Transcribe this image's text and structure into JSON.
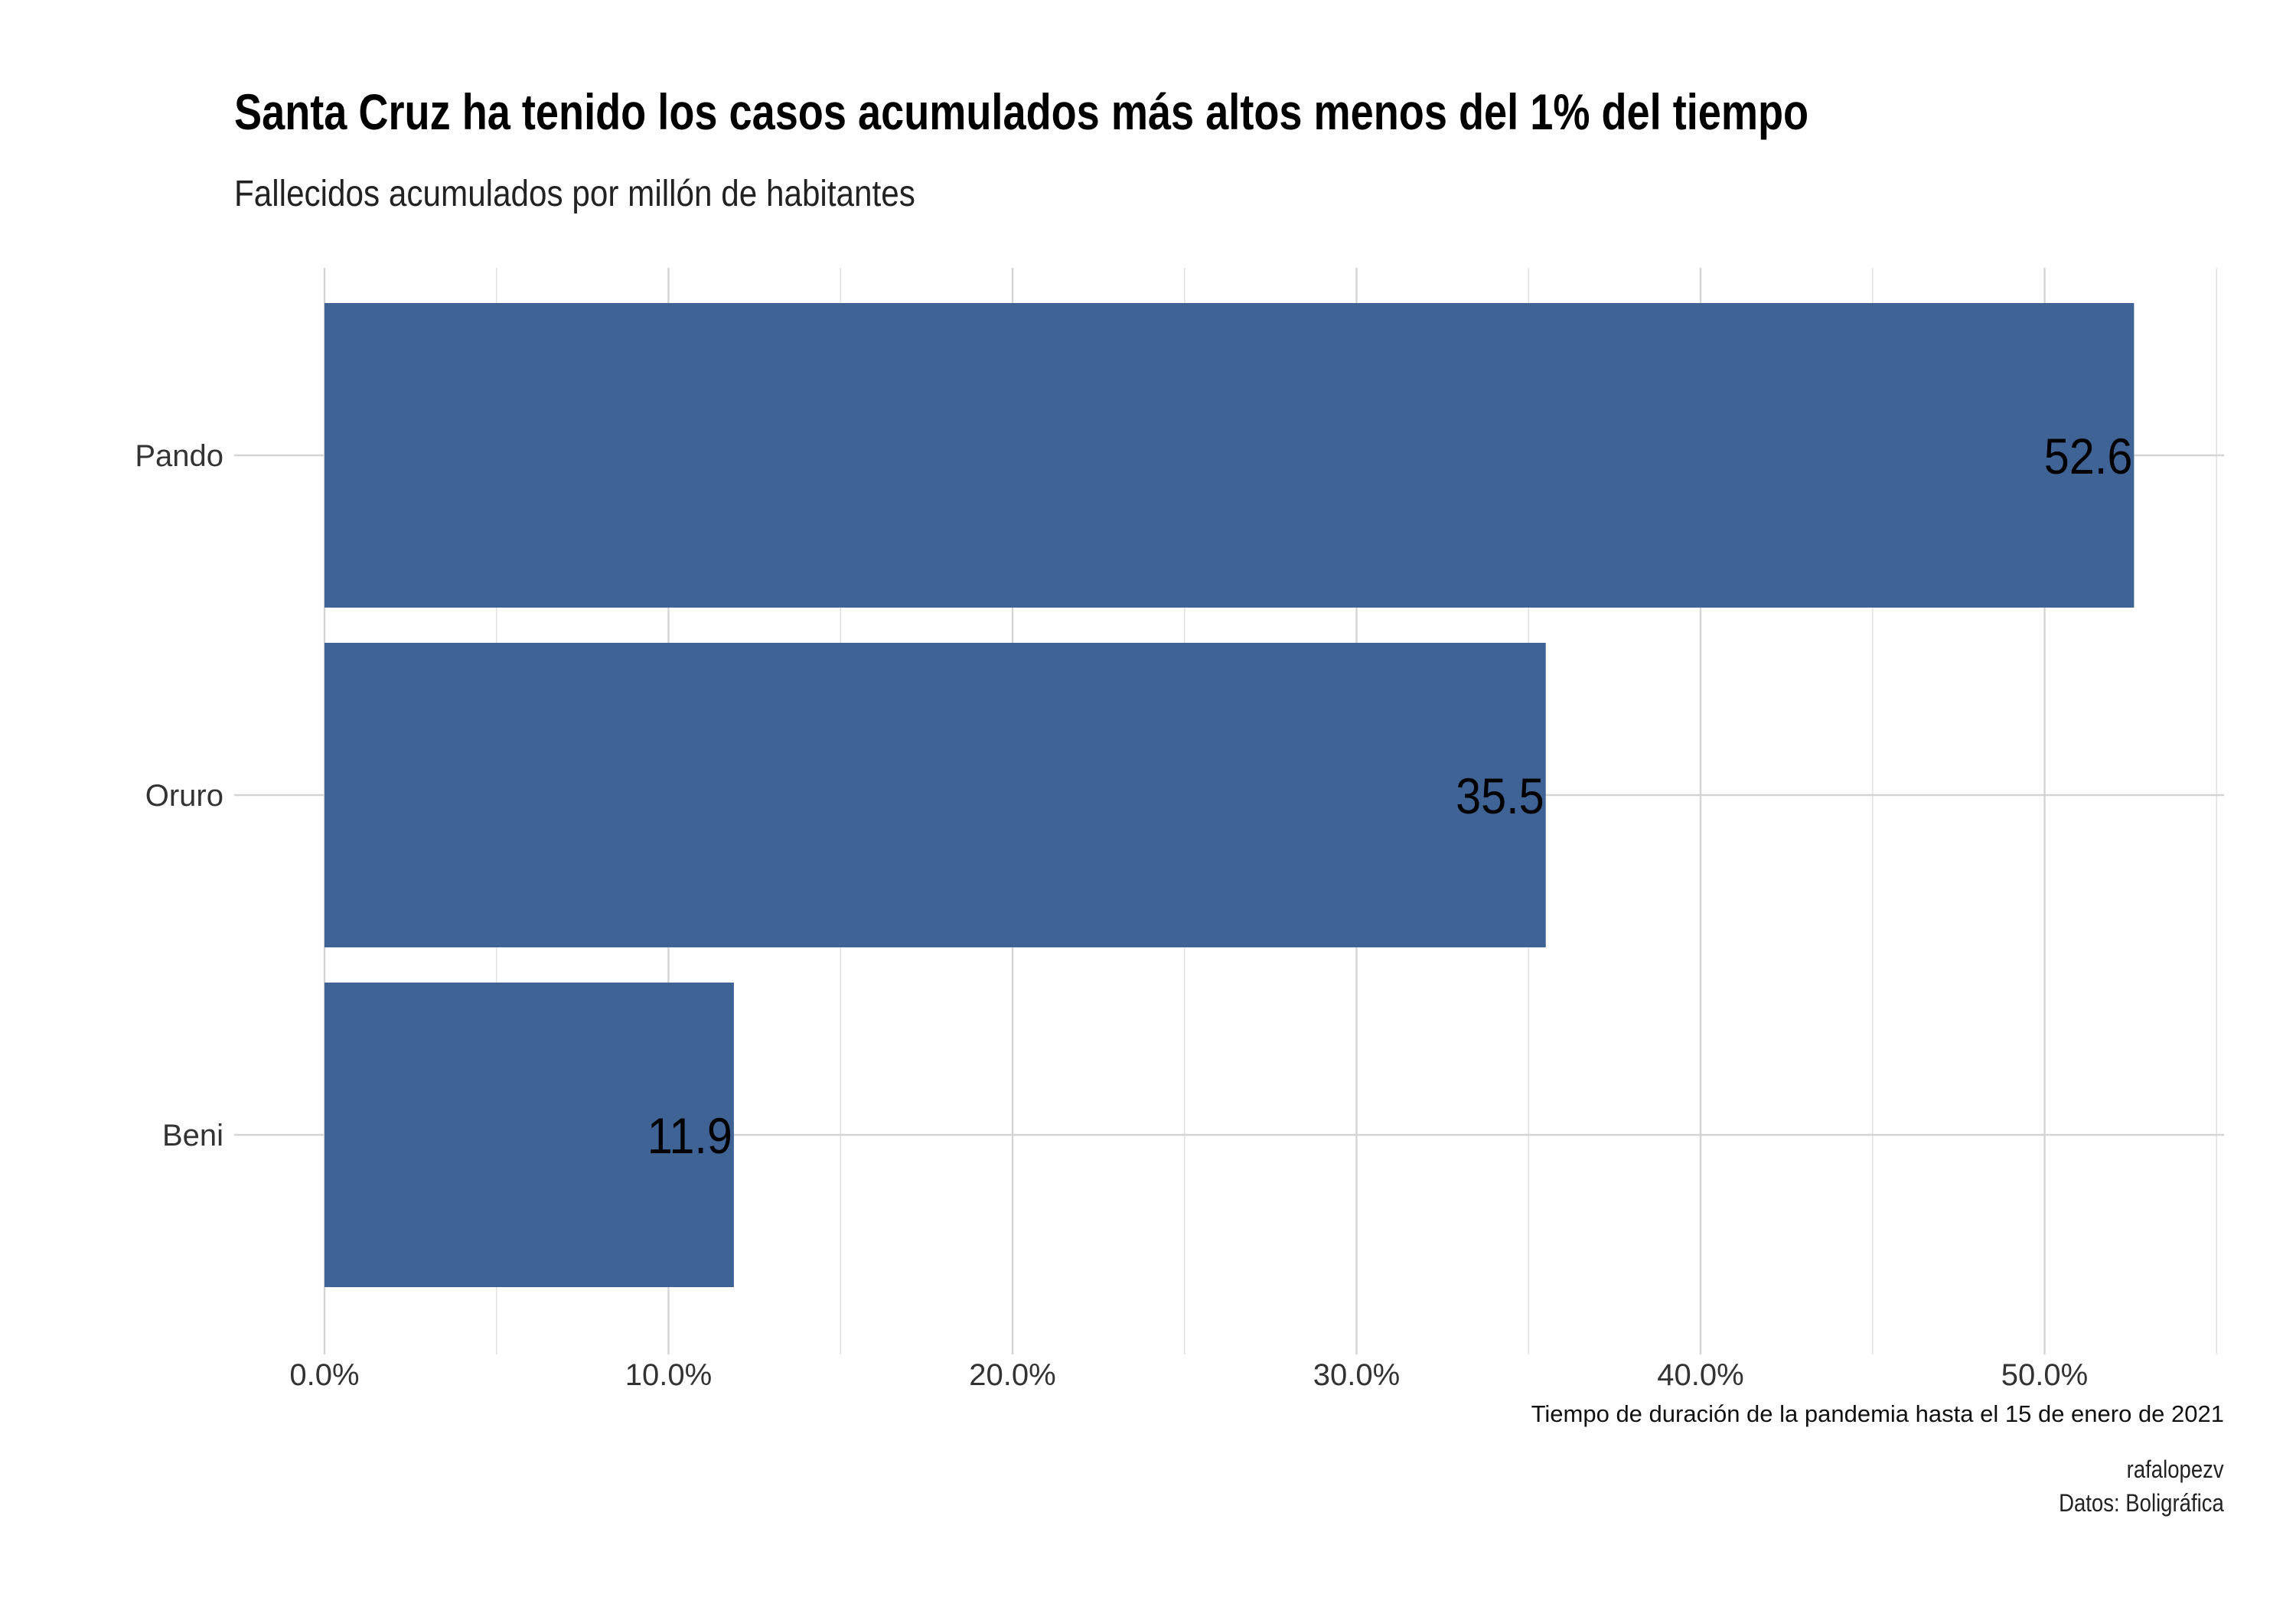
{
  "chart_data": {
    "type": "bar",
    "orientation": "horizontal",
    "title": "Santa Cruz ha tenido los casos acumulados más altos menos del 1% del tiempo",
    "subtitle": "Fallecidos acumulados por millón de habitantes",
    "xlabel": "Tiempo de duración de la pandemia hasta el 15 de enero de 2021",
    "ylabel": "",
    "categories": [
      "Pando",
      "Oruro",
      "Beni"
    ],
    "values": [
      52.6,
      35.5,
      11.9
    ],
    "data_labels": [
      "52.6",
      "35.5",
      "11.9"
    ],
    "xlim": [
      0,
      55
    ],
    "x_ticks": [
      0,
      10,
      20,
      30,
      40,
      50
    ],
    "x_tick_labels": [
      "0.0%",
      "10.0%",
      "20.0%",
      "30.0%",
      "40.0%",
      "50.0%"
    ],
    "grid": true,
    "legend": "none",
    "bar_color": "#3f6395"
  },
  "caption": {
    "author": "rafalopezv",
    "source": "Datos: Boligráfica"
  }
}
